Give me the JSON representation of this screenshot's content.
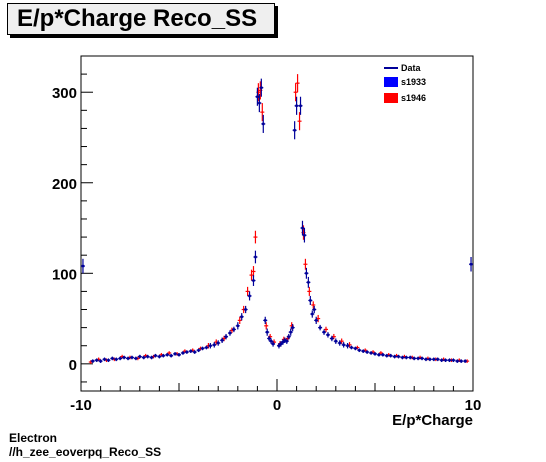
{
  "chart_data": {
    "type": "scatter",
    "title": "E/p*Charge Reco_SS",
    "xlabel": "E/p*Charge",
    "ylabel": "",
    "xlim": [
      -10,
      10
    ],
    "ylim": [
      -30,
      340
    ],
    "x_ticks": [
      -10,
      0,
      10
    ],
    "y_ticks": [
      0,
      100,
      200,
      300
    ],
    "grid": false,
    "legend_position": "top-right",
    "legend": [
      {
        "label": "Data",
        "style": "line",
        "color": "#000099"
      },
      {
        "label": "s1933",
        "style": "box",
        "color": "#0000ff"
      },
      {
        "label": "s1946",
        "style": "box",
        "color": "#ff0000"
      }
    ],
    "series": [
      {
        "name": "s1933",
        "color": "#000099",
        "points": [
          [
            -9.9,
            108,
            8
          ],
          [
            -9.4,
            3,
            2
          ],
          [
            -9.2,
            4,
            2
          ],
          [
            -9.0,
            3,
            2
          ],
          [
            -8.8,
            5,
            2
          ],
          [
            -8.6,
            4,
            2
          ],
          [
            -8.4,
            6,
            2
          ],
          [
            -8.2,
            5,
            2
          ],
          [
            -8.0,
            6,
            2
          ],
          [
            -7.8,
            7,
            2
          ],
          [
            -7.6,
            6,
            2
          ],
          [
            -7.4,
            7,
            2
          ],
          [
            -7.2,
            6,
            2
          ],
          [
            -7.0,
            8,
            2
          ],
          [
            -6.8,
            7,
            2
          ],
          [
            -6.6,
            8,
            2
          ],
          [
            -6.4,
            7,
            2
          ],
          [
            -6.2,
            9,
            2
          ],
          [
            -6.0,
            8,
            2
          ],
          [
            -5.8,
            9,
            2
          ],
          [
            -5.6,
            10,
            2
          ],
          [
            -5.4,
            9,
            2
          ],
          [
            -5.2,
            11,
            2
          ],
          [
            -5.0,
            10,
            2
          ],
          [
            -4.8,
            12,
            2
          ],
          [
            -4.6,
            13,
            2
          ],
          [
            -4.4,
            14,
            2
          ],
          [
            -4.2,
            13,
            2
          ],
          [
            -4.0,
            15,
            2
          ],
          [
            -3.8,
            17,
            2
          ],
          [
            -3.6,
            18,
            2
          ],
          [
            -3.4,
            20,
            3
          ],
          [
            -3.2,
            21,
            3
          ],
          [
            -3.0,
            23,
            3
          ],
          [
            -2.8,
            26,
            3
          ],
          [
            -2.6,
            30,
            3
          ],
          [
            -2.4,
            34,
            3
          ],
          [
            -2.2,
            38,
            3
          ],
          [
            -2.0,
            42,
            4
          ],
          [
            -1.8,
            52,
            4
          ],
          [
            -1.6,
            60,
            4
          ],
          [
            -1.4,
            75,
            5
          ],
          [
            -1.2,
            92,
            6
          ],
          [
            -1.1,
            118,
            7
          ],
          [
            -1.0,
            295,
            10
          ],
          [
            -0.9,
            288,
            10
          ],
          [
            -0.8,
            305,
            10
          ],
          [
            -0.7,
            265,
            10
          ],
          [
            -0.6,
            48,
            4
          ],
          [
            -0.5,
            35,
            4
          ],
          [
            -0.4,
            28,
            3
          ],
          [
            -0.3,
            25,
            3
          ],
          [
            -0.2,
            22,
            3
          ],
          [
            0.1,
            20,
            3
          ],
          [
            0.2,
            22,
            3
          ],
          [
            0.3,
            24,
            3
          ],
          [
            0.4,
            26,
            3
          ],
          [
            0.5,
            25,
            3
          ],
          [
            0.6,
            30,
            3
          ],
          [
            0.7,
            35,
            4
          ],
          [
            0.8,
            40,
            4
          ],
          [
            0.9,
            258,
            10
          ],
          [
            1.0,
            285,
            10
          ],
          [
            1.2,
            285,
            10
          ],
          [
            1.3,
            150,
            8
          ],
          [
            1.4,
            142,
            8
          ],
          [
            1.5,
            100,
            6
          ],
          [
            1.6,
            90,
            6
          ],
          [
            1.7,
            70,
            5
          ],
          [
            1.8,
            55,
            4
          ],
          [
            1.9,
            60,
            4
          ],
          [
            2.0,
            48,
            4
          ],
          [
            2.2,
            40,
            3
          ],
          [
            2.4,
            35,
            3
          ],
          [
            2.6,
            32,
            3
          ],
          [
            2.8,
            28,
            3
          ],
          [
            3.0,
            25,
            3
          ],
          [
            3.2,
            23,
            3
          ],
          [
            3.4,
            21,
            3
          ],
          [
            3.6,
            20,
            3
          ],
          [
            3.8,
            18,
            2
          ],
          [
            4.0,
            17,
            2
          ],
          [
            4.2,
            15,
            2
          ],
          [
            4.4,
            14,
            2
          ],
          [
            4.6,
            13,
            2
          ],
          [
            4.8,
            12,
            2
          ],
          [
            5.0,
            11,
            2
          ],
          [
            5.2,
            10,
            2
          ],
          [
            5.4,
            10,
            2
          ],
          [
            5.6,
            9,
            2
          ],
          [
            5.8,
            9,
            2
          ],
          [
            6.0,
            8,
            2
          ],
          [
            6.2,
            8,
            2
          ],
          [
            6.4,
            7,
            2
          ],
          [
            6.6,
            7,
            2
          ],
          [
            6.8,
            7,
            2
          ],
          [
            7.0,
            6,
            2
          ],
          [
            7.2,
            6,
            2
          ],
          [
            7.4,
            6,
            2
          ],
          [
            7.6,
            5,
            2
          ],
          [
            7.8,
            5,
            2
          ],
          [
            8.0,
            5,
            2
          ],
          [
            8.2,
            5,
            2
          ],
          [
            8.4,
            4,
            2
          ],
          [
            8.6,
            4,
            2
          ],
          [
            8.8,
            4,
            2
          ],
          [
            9.0,
            4,
            2
          ],
          [
            9.2,
            3,
            2
          ],
          [
            9.4,
            3,
            2
          ],
          [
            9.6,
            3,
            2
          ],
          [
            9.9,
            110,
            8
          ]
        ]
      },
      {
        "name": "s1946",
        "color": "#ff0000",
        "points": [
          [
            -9.5,
            2,
            2
          ],
          [
            -9.1,
            5,
            2
          ],
          [
            -8.7,
            4,
            2
          ],
          [
            -8.3,
            5,
            2
          ],
          [
            -7.9,
            8,
            2
          ],
          [
            -7.5,
            7,
            2
          ],
          [
            -7.1,
            6,
            2
          ],
          [
            -6.7,
            9,
            2
          ],
          [
            -6.3,
            8,
            2
          ],
          [
            -5.9,
            10,
            2
          ],
          [
            -5.5,
            12,
            2
          ],
          [
            -5.1,
            11,
            2
          ],
          [
            -4.7,
            14,
            2
          ],
          [
            -4.3,
            15,
            2
          ],
          [
            -3.9,
            17,
            2
          ],
          [
            -3.5,
            20,
            3
          ],
          [
            -3.1,
            24,
            3
          ],
          [
            -2.7,
            28,
            3
          ],
          [
            -2.3,
            37,
            3
          ],
          [
            -1.9,
            48,
            4
          ],
          [
            -1.7,
            60,
            4
          ],
          [
            -1.5,
            80,
            5
          ],
          [
            -1.3,
            98,
            6
          ],
          [
            -1.2,
            102,
            6
          ],
          [
            -1.1,
            140,
            7
          ],
          [
            -0.95,
            300,
            10
          ],
          [
            -0.85,
            302,
            10
          ],
          [
            -0.75,
            278,
            10
          ],
          [
            -0.55,
            42,
            4
          ],
          [
            -0.35,
            30,
            3
          ],
          [
            -0.15,
            24,
            3
          ],
          [
            0.15,
            22,
            3
          ],
          [
            0.35,
            27,
            3
          ],
          [
            0.55,
            28,
            3
          ],
          [
            0.75,
            42,
            4
          ],
          [
            0.95,
            300,
            10
          ],
          [
            1.05,
            310,
            10
          ],
          [
            1.15,
            268,
            10
          ],
          [
            1.35,
            145,
            8
          ],
          [
            1.45,
            110,
            6
          ],
          [
            1.65,
            80,
            5
          ],
          [
            1.85,
            65,
            4
          ],
          [
            2.1,
            50,
            4
          ],
          [
            2.5,
            38,
            3
          ],
          [
            2.9,
            30,
            3
          ],
          [
            3.3,
            25,
            3
          ],
          [
            3.7,
            21,
            3
          ],
          [
            4.1,
            18,
            2
          ],
          [
            4.5,
            15,
            2
          ],
          [
            4.9,
            13,
            2
          ],
          [
            5.3,
            12,
            2
          ],
          [
            5.7,
            10,
            2
          ],
          [
            6.1,
            9,
            2
          ],
          [
            6.5,
            8,
            2
          ],
          [
            6.9,
            7,
            2
          ],
          [
            7.3,
            7,
            2
          ],
          [
            7.7,
            6,
            2
          ],
          [
            8.1,
            5,
            2
          ],
          [
            8.5,
            5,
            2
          ],
          [
            8.9,
            4,
            2
          ],
          [
            9.3,
            4,
            2
          ],
          [
            9.7,
            3,
            2
          ]
        ]
      }
    ]
  },
  "footer": {
    "line1": "Electron",
    "line2": "//h_zee_eoverpq_Reco_SS"
  }
}
